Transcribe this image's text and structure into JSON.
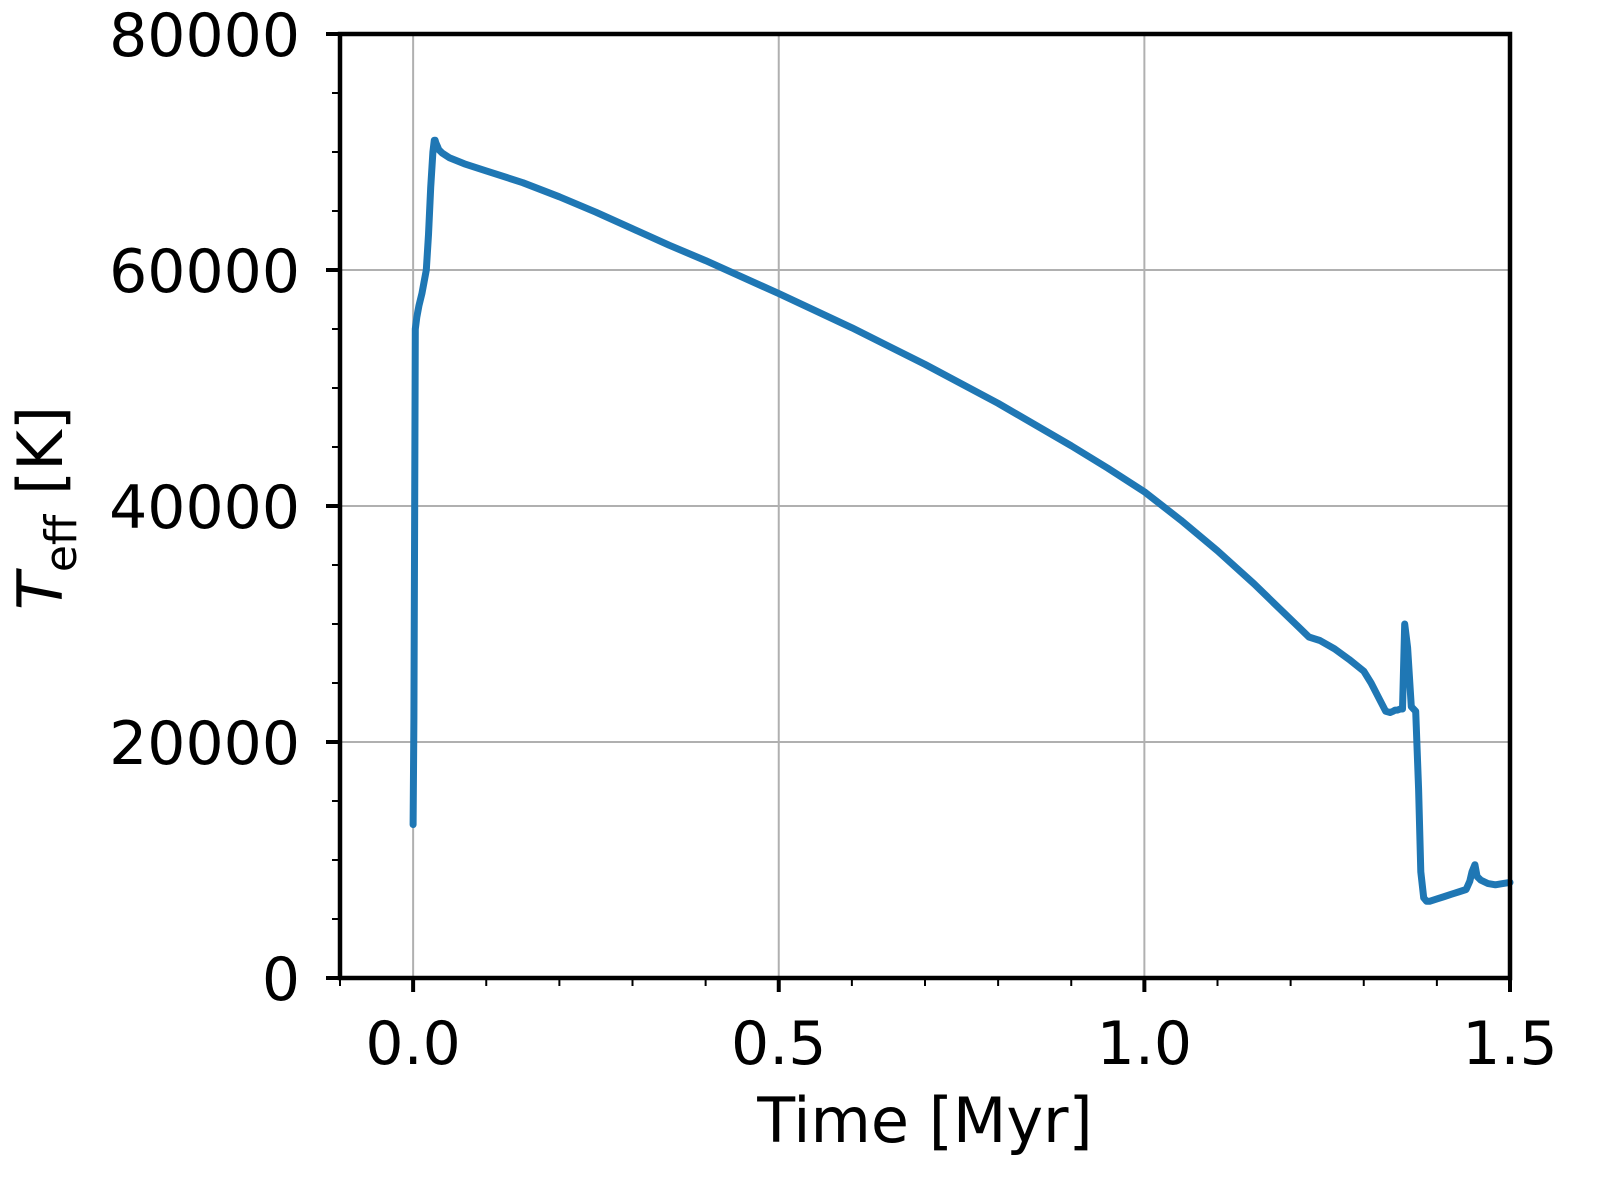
{
  "chart_data": {
    "type": "line",
    "xlabel": "Time [Myr]",
    "ylabel": {
      "symbol": "T",
      "subscript": "eff",
      "unit": "[K]"
    },
    "xlim": [
      -0.1,
      1.5
    ],
    "ylim": [
      0,
      80000
    ],
    "x_ticks": [
      0.0,
      0.5,
      1.0,
      1.5
    ],
    "x_tick_labels": [
      "0.0",
      "0.5",
      "1.0",
      "1.5"
    ],
    "y_ticks": [
      0,
      20000,
      40000,
      60000,
      80000
    ],
    "y_tick_labels": [
      "0",
      "20000",
      "40000",
      "60000",
      "80000"
    ],
    "x_minor_step": 0.1,
    "y_minor_step": 5000,
    "grid": true,
    "series": [
      {
        "color": "#1f77b4",
        "x": [
          0.0,
          0.001,
          0.002,
          0.003,
          0.005,
          0.008,
          0.012,
          0.015,
          0.018,
          0.021,
          0.024,
          0.027,
          0.029,
          0.03,
          0.031,
          0.033,
          0.035,
          0.04,
          0.05,
          0.07,
          0.1,
          0.15,
          0.2,
          0.25,
          0.3,
          0.35,
          0.4,
          0.5,
          0.6,
          0.7,
          0.8,
          0.9,
          0.95,
          1.0,
          1.05,
          1.1,
          1.15,
          1.2,
          1.215,
          1.225,
          1.24,
          1.26,
          1.28,
          1.3,
          1.31,
          1.32,
          1.33,
          1.336,
          1.34,
          1.343,
          1.346,
          1.35,
          1.353,
          1.356,
          1.36,
          1.365,
          1.368,
          1.371,
          1.375,
          1.378,
          1.382,
          1.386,
          1.39,
          1.4,
          1.41,
          1.42,
          1.43,
          1.44,
          1.445,
          1.448,
          1.452,
          1.455,
          1.46,
          1.47,
          1.48,
          1.49,
          1.5
        ],
        "y": [
          13000,
          22000,
          38000,
          55000,
          56000,
          57000,
          58000,
          59000,
          60000,
          63000,
          67000,
          70000,
          71000,
          71000,
          70800,
          70500,
          70200,
          69900,
          69500,
          69000,
          68400,
          67400,
          66200,
          64900,
          63500,
          62100,
          60800,
          58000,
          55100,
          52000,
          48700,
          45100,
          43200,
          41200,
          38800,
          36200,
          33400,
          30400,
          29500,
          28900,
          28600,
          27900,
          27000,
          26000,
          25000,
          23800,
          22600,
          22500,
          22600,
          22700,
          22700,
          22800,
          22800,
          30000,
          28000,
          23000,
          22800,
          22600,
          16000,
          9000,
          6800,
          6500,
          6500,
          6700,
          6900,
          7100,
          7300,
          7500,
          8200,
          9000,
          9600,
          8600,
          8300,
          8000,
          7900,
          8000,
          8100
        ]
      }
    ]
  }
}
